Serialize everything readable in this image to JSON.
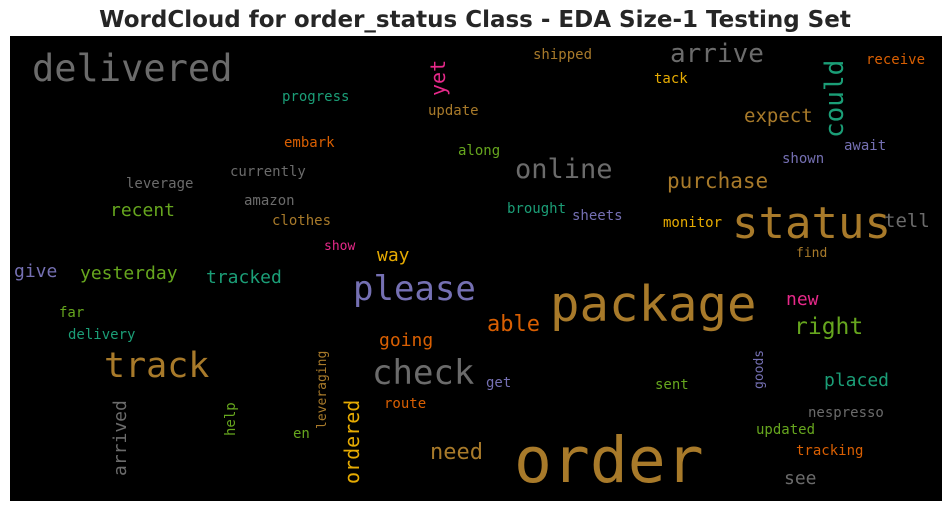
{
  "title": "WordCloud for order_status Class - EDA Size-1 Testing Set",
  "colors": {
    "background": "#000000",
    "gray": "#6b6b6b",
    "gold": "#a87a2a",
    "purple": "#7570b3",
    "green": "#1b9e77",
    "orange": "#d95f02",
    "pink": "#e7298a",
    "lime": "#66a61e",
    "yellow": "#e6ab02"
  },
  "words": [
    {
      "id": "delivered",
      "text": "delivered",
      "color": "#6b6b6b"
    },
    {
      "id": "arrive",
      "text": "arrive",
      "color": "#6b6b6b"
    },
    {
      "id": "shipped",
      "text": "shipped",
      "color": "#a87a2a"
    },
    {
      "id": "receive",
      "text": "receive",
      "color": "#d95f02"
    },
    {
      "id": "tack",
      "text": "tack",
      "color": "#e6ab02"
    },
    {
      "id": "yet",
      "text": "yet",
      "color": "#e7298a"
    },
    {
      "id": "could",
      "text": "could",
      "color": "#1b9e77"
    },
    {
      "id": "progress",
      "text": "progress",
      "color": "#1b9e77"
    },
    {
      "id": "update",
      "text": "update",
      "color": "#a87a2a"
    },
    {
      "id": "expect",
      "text": "expect",
      "color": "#a87a2a"
    },
    {
      "id": "embark",
      "text": "embark",
      "color": "#d95f02"
    },
    {
      "id": "along",
      "text": "along",
      "color": "#66a61e"
    },
    {
      "id": "await",
      "text": "await",
      "color": "#7570b3"
    },
    {
      "id": "shown",
      "text": "shown",
      "color": "#7570b3"
    },
    {
      "id": "online",
      "text": "online",
      "color": "#6b6b6b"
    },
    {
      "id": "currently",
      "text": "currently",
      "color": "#6b6b6b"
    },
    {
      "id": "leverage",
      "text": "leverage",
      "color": "#6b6b6b"
    },
    {
      "id": "purchase",
      "text": "purchase",
      "color": "#a87a2a"
    },
    {
      "id": "amazon",
      "text": "amazon",
      "color": "#6b6b6b"
    },
    {
      "id": "recent",
      "text": "recent",
      "color": "#66a61e"
    },
    {
      "id": "clothes",
      "text": "clothes",
      "color": "#a87a2a"
    },
    {
      "id": "brought",
      "text": "brought",
      "color": "#1b9e77"
    },
    {
      "id": "sheets",
      "text": "sheets",
      "color": "#7570b3"
    },
    {
      "id": "status",
      "text": "status",
      "color": "#a87a2a"
    },
    {
      "id": "monitor",
      "text": "monitor",
      "color": "#e6ab02"
    },
    {
      "id": "tell",
      "text": "tell",
      "color": "#6b6b6b"
    },
    {
      "id": "show",
      "text": "show",
      "color": "#e7298a"
    },
    {
      "id": "way",
      "text": "way",
      "color": "#e6ab02"
    },
    {
      "id": "find",
      "text": "find",
      "color": "#a87a2a"
    },
    {
      "id": "give",
      "text": "give",
      "color": "#7570b3"
    },
    {
      "id": "yesterday",
      "text": "yesterday",
      "color": "#66a61e"
    },
    {
      "id": "tracked",
      "text": "tracked",
      "color": "#1b9e77"
    },
    {
      "id": "please",
      "text": "please",
      "color": "#7570b3"
    },
    {
      "id": "package",
      "text": "package",
      "color": "#a87a2a"
    },
    {
      "id": "new",
      "text": "new",
      "color": "#e7298a"
    },
    {
      "id": "far",
      "text": "far",
      "color": "#66a61e"
    },
    {
      "id": "able",
      "text": "able",
      "color": "#d95f02"
    },
    {
      "id": "right",
      "text": "right",
      "color": "#66a61e"
    },
    {
      "id": "delivery",
      "text": "delivery",
      "color": "#1b9e77"
    },
    {
      "id": "going",
      "text": "going",
      "color": "#d95f02"
    },
    {
      "id": "track",
      "text": "track",
      "color": "#a87a2a"
    },
    {
      "id": "leveraging",
      "text": "leveraging",
      "color": "#a87a2a"
    },
    {
      "id": "check",
      "text": "check",
      "color": "#6b6b6b"
    },
    {
      "id": "goods",
      "text": "goods",
      "color": "#7570b3"
    },
    {
      "id": "placed",
      "text": "placed",
      "color": "#1b9e77"
    },
    {
      "id": "get",
      "text": "get",
      "color": "#7570b3"
    },
    {
      "id": "sent",
      "text": "sent",
      "color": "#66a61e"
    },
    {
      "id": "arrived",
      "text": "arrived",
      "color": "#6b6b6b"
    },
    {
      "id": "ordered",
      "text": "ordered",
      "color": "#e6ab02"
    },
    {
      "id": "route",
      "text": "route",
      "color": "#d95f02"
    },
    {
      "id": "help",
      "text": "help",
      "color": "#66a61e"
    },
    {
      "id": "nespresso",
      "text": "nespresso",
      "color": "#6b6b6b"
    },
    {
      "id": "updated",
      "text": "updated",
      "color": "#66a61e"
    },
    {
      "id": "en",
      "text": "en",
      "color": "#66a61e"
    },
    {
      "id": "order",
      "text": "order",
      "color": "#a87a2a"
    },
    {
      "id": "need",
      "text": "need",
      "color": "#a87a2a"
    },
    {
      "id": "tracking",
      "text": "tracking",
      "color": "#d95f02"
    },
    {
      "id": "see",
      "text": "see",
      "color": "#6b6b6b"
    }
  ]
}
